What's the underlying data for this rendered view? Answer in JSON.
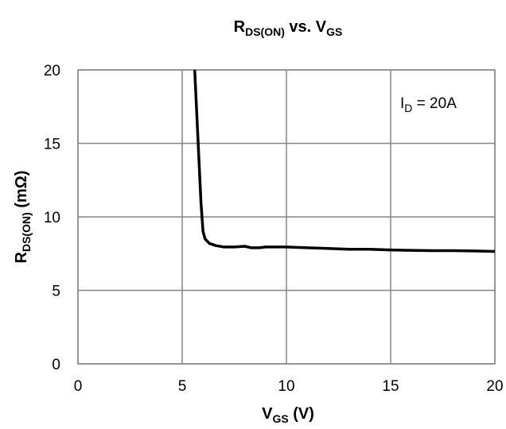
{
  "chart_data": {
    "type": "line",
    "title": {
      "main": "R",
      "main_sub": "DS(ON)",
      "vs": " vs. V",
      "vs_sub": "GS"
    },
    "xlabel": {
      "main": "V",
      "sub": "GS",
      "unit": " (V)"
    },
    "ylabel": {
      "main": "R",
      "sub": "DS(ON)",
      "unit": " (mΩ)"
    },
    "xlim": [
      0,
      20
    ],
    "ylim": [
      0,
      20
    ],
    "xticks": [
      0,
      5,
      10,
      15,
      20
    ],
    "yticks": [
      0,
      5,
      10,
      15,
      20
    ],
    "x_tick_labels": [
      "0",
      "5",
      "10",
      "15",
      "20"
    ],
    "y_tick_labels": [
      "0",
      "5",
      "10",
      "15",
      "20"
    ],
    "grid": true,
    "annotation": {
      "main": "I",
      "sub": "D",
      "rest": " = 20A"
    },
    "series": [
      {
        "x": [
          5.6,
          5.7,
          5.8,
          5.9,
          6.0,
          6.1,
          6.3,
          6.6,
          7.0,
          7.5,
          8.0,
          8.3,
          8.7,
          9.0,
          9.5,
          10.0,
          11.0,
          12.0,
          13.0,
          14.0,
          15.0,
          16.0,
          17.0,
          18.0,
          19.0,
          20.0
        ],
        "y": [
          20.0,
          17.0,
          14.0,
          11.0,
          9.0,
          8.5,
          8.2,
          8.05,
          7.95,
          7.95,
          8.0,
          7.9,
          7.9,
          7.95,
          7.95,
          7.95,
          7.9,
          7.85,
          7.8,
          7.8,
          7.75,
          7.72,
          7.7,
          7.7,
          7.68,
          7.65
        ]
      }
    ],
    "line_color": "#000000",
    "grid_color": "#868686"
  }
}
